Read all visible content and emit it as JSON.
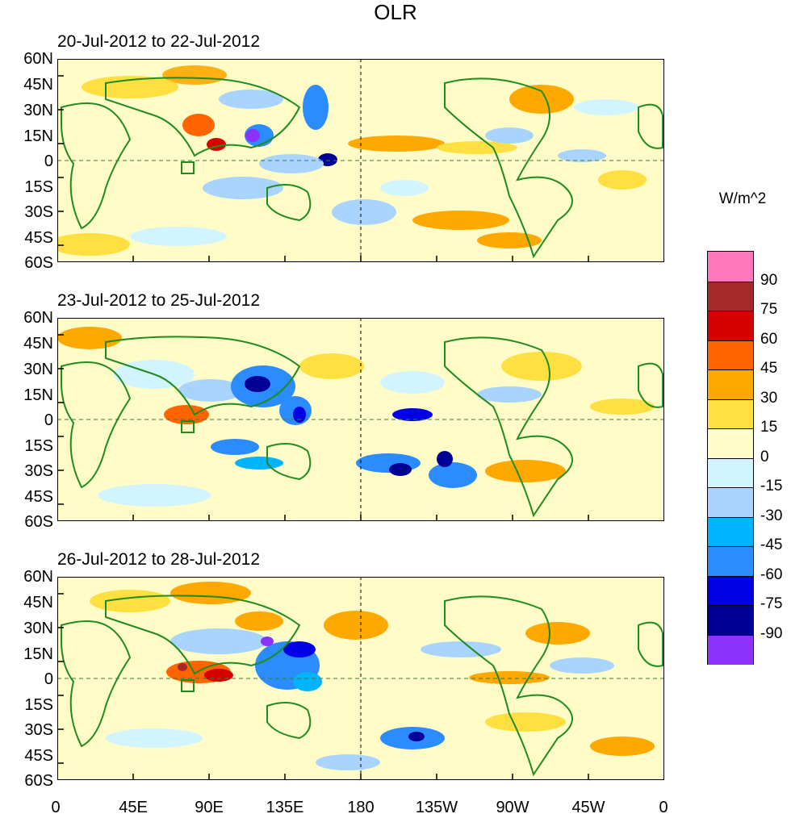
{
  "title": "OLR",
  "unit": "W/m^2",
  "panels": [
    {
      "title": "20-Jul-2012 to 22-Jul-2012"
    },
    {
      "title": "23-Jul-2012 to 25-Jul-2012"
    },
    {
      "title": "26-Jul-2012 to 28-Jul-2012"
    }
  ],
  "lat_labels": [
    "60N",
    "45N",
    "30N",
    "15N",
    "0",
    "15S",
    "30S",
    "45S",
    "60S"
  ],
  "lon_labels": [
    "0",
    "45E",
    "90E",
    "135E",
    "180",
    "135W",
    "90W",
    "45W",
    "0"
  ],
  "colorbar": {
    "labels": [
      "90",
      "75",
      "60",
      "45",
      "30",
      "15",
      "0",
      "-15",
      "-30",
      "-45",
      "-60",
      "-75",
      "-90"
    ],
    "colors": [
      "#ff78bc",
      "#a52a2a",
      "#d60000",
      "#ff6400",
      "#ffa800",
      "#ffe040",
      "#fffcc8",
      "#d2f4ff",
      "#a8d4ff",
      "#00b4ff",
      "#2a8cff",
      "#0000e6",
      "#000096",
      "#8c32ff"
    ]
  },
  "colors": {
    "coast": "#1e8c1e",
    "grid": "#3c7c3c",
    "background": "#ffffff"
  }
}
